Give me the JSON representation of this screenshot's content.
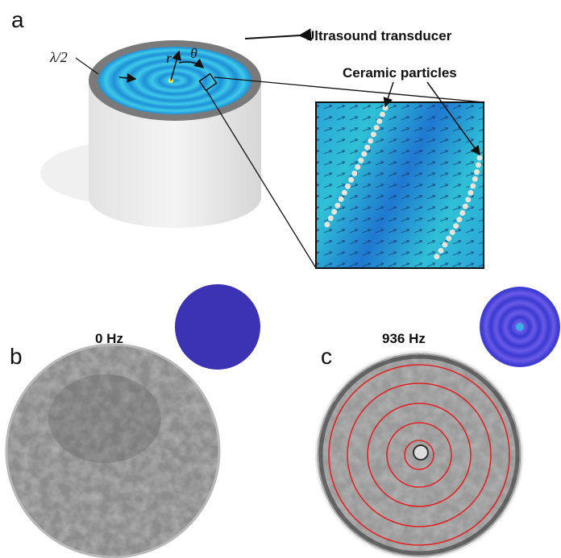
{
  "panels": {
    "a": {
      "label": "a",
      "transducer_label": "Ultrasound transducer",
      "lambda_label": "λ/2",
      "r_label": "r",
      "theta_label": "θ",
      "particles_label": "Ceramic particles"
    },
    "b": {
      "label": "b",
      "frequency": "0 Hz"
    },
    "c": {
      "label": "c",
      "frequency": "936 Hz"
    }
  }
}
